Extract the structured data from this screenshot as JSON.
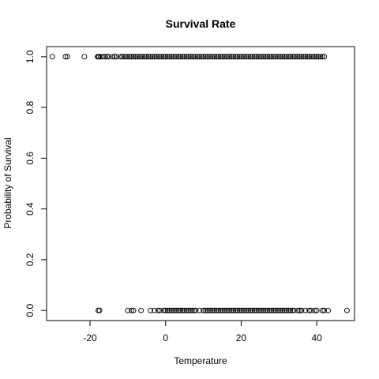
{
  "chart_data": {
    "type": "scatter",
    "title": "Survival Rate",
    "xlabel": "Temperature",
    "ylabel": "Probability of Survival",
    "xlim": [
      -31.5,
      50
    ],
    "ylim": [
      -0.04,
      1.04
    ],
    "xticks": [
      -20,
      0,
      20,
      40
    ],
    "yticks": [
      0.0,
      0.2,
      0.4,
      0.6,
      0.8,
      1.0
    ],
    "ytick_labels": [
      "0.0",
      "0.2",
      "0.4",
      "0.6",
      "0.8",
      "1.0"
    ],
    "grid": false,
    "legend": "none",
    "marker": "open-circle",
    "series": [
      {
        "y": 1.0,
        "x": [
          -30,
          -26.5,
          -26,
          -21.5,
          -18,
          -17.8,
          -17.6,
          -17.2,
          -16.5,
          -16,
          -15.5,
          -15,
          -14,
          -13.5,
          -13,
          -12,
          -11.5,
          -11,
          -10.5,
          -10,
          -9.5,
          -9,
          -8.5,
          -8,
          -7.5,
          -7,
          -6.5,
          -6,
          -5.5,
          -5,
          -4.5,
          -4,
          -3.5,
          -3,
          -2.5,
          -2,
          -1.5,
          -1,
          -0.5,
          0,
          0.5,
          1,
          1.5,
          2,
          2.5,
          3,
          3.5,
          4,
          4.5,
          5,
          5.5,
          6,
          6.5,
          7,
          7.5,
          8,
          8.5,
          9,
          9.5,
          10,
          10.5,
          11,
          11.5,
          12,
          12.5,
          13,
          13.5,
          14,
          14.5,
          15,
          15.5,
          16,
          16.5,
          17,
          17.5,
          18,
          18.5,
          19,
          19.5,
          20,
          20.5,
          21,
          21.5,
          22,
          22.5,
          23,
          23.5,
          24,
          24.5,
          25,
          25.5,
          26,
          26.5,
          27,
          27.5,
          28,
          28.5,
          29,
          29.5,
          30,
          30.5,
          31,
          31.5,
          32,
          32.5,
          33,
          33.5,
          34,
          34.5,
          35,
          35.5,
          36,
          36.5,
          37,
          37.5,
          38,
          38.5,
          39,
          39.5,
          40,
          40.5,
          41,
          41.5,
          42
        ]
      },
      {
        "y": 0.0,
        "x": [
          -17.8,
          -17.5,
          -10,
          -9,
          -8.5,
          -6.5,
          -4,
          -3,
          -2,
          -1.5,
          -0.5,
          0,
          0.5,
          1,
          1.5,
          2,
          2.5,
          3,
          3.5,
          4,
          4.5,
          5,
          5.5,
          6,
          6.5,
          7,
          7.5,
          8,
          9,
          10,
          10.5,
          11,
          11.5,
          12,
          12.5,
          13,
          13.5,
          14,
          14.5,
          15,
          15.5,
          16,
          16.5,
          17,
          17.5,
          18,
          18.5,
          19,
          19.5,
          20,
          20.5,
          21,
          21.5,
          22,
          22.5,
          23,
          23.5,
          24,
          24.5,
          25,
          25.5,
          26,
          26.5,
          27,
          27.5,
          28,
          28.5,
          29,
          29.5,
          30,
          30.5,
          31,
          31.5,
          32,
          32.5,
          33,
          33.5,
          34,
          35,
          35.5,
          36,
          37,
          38,
          38.5,
          39.5,
          40,
          41.5,
          42,
          43,
          48
        ]
      }
    ]
  }
}
